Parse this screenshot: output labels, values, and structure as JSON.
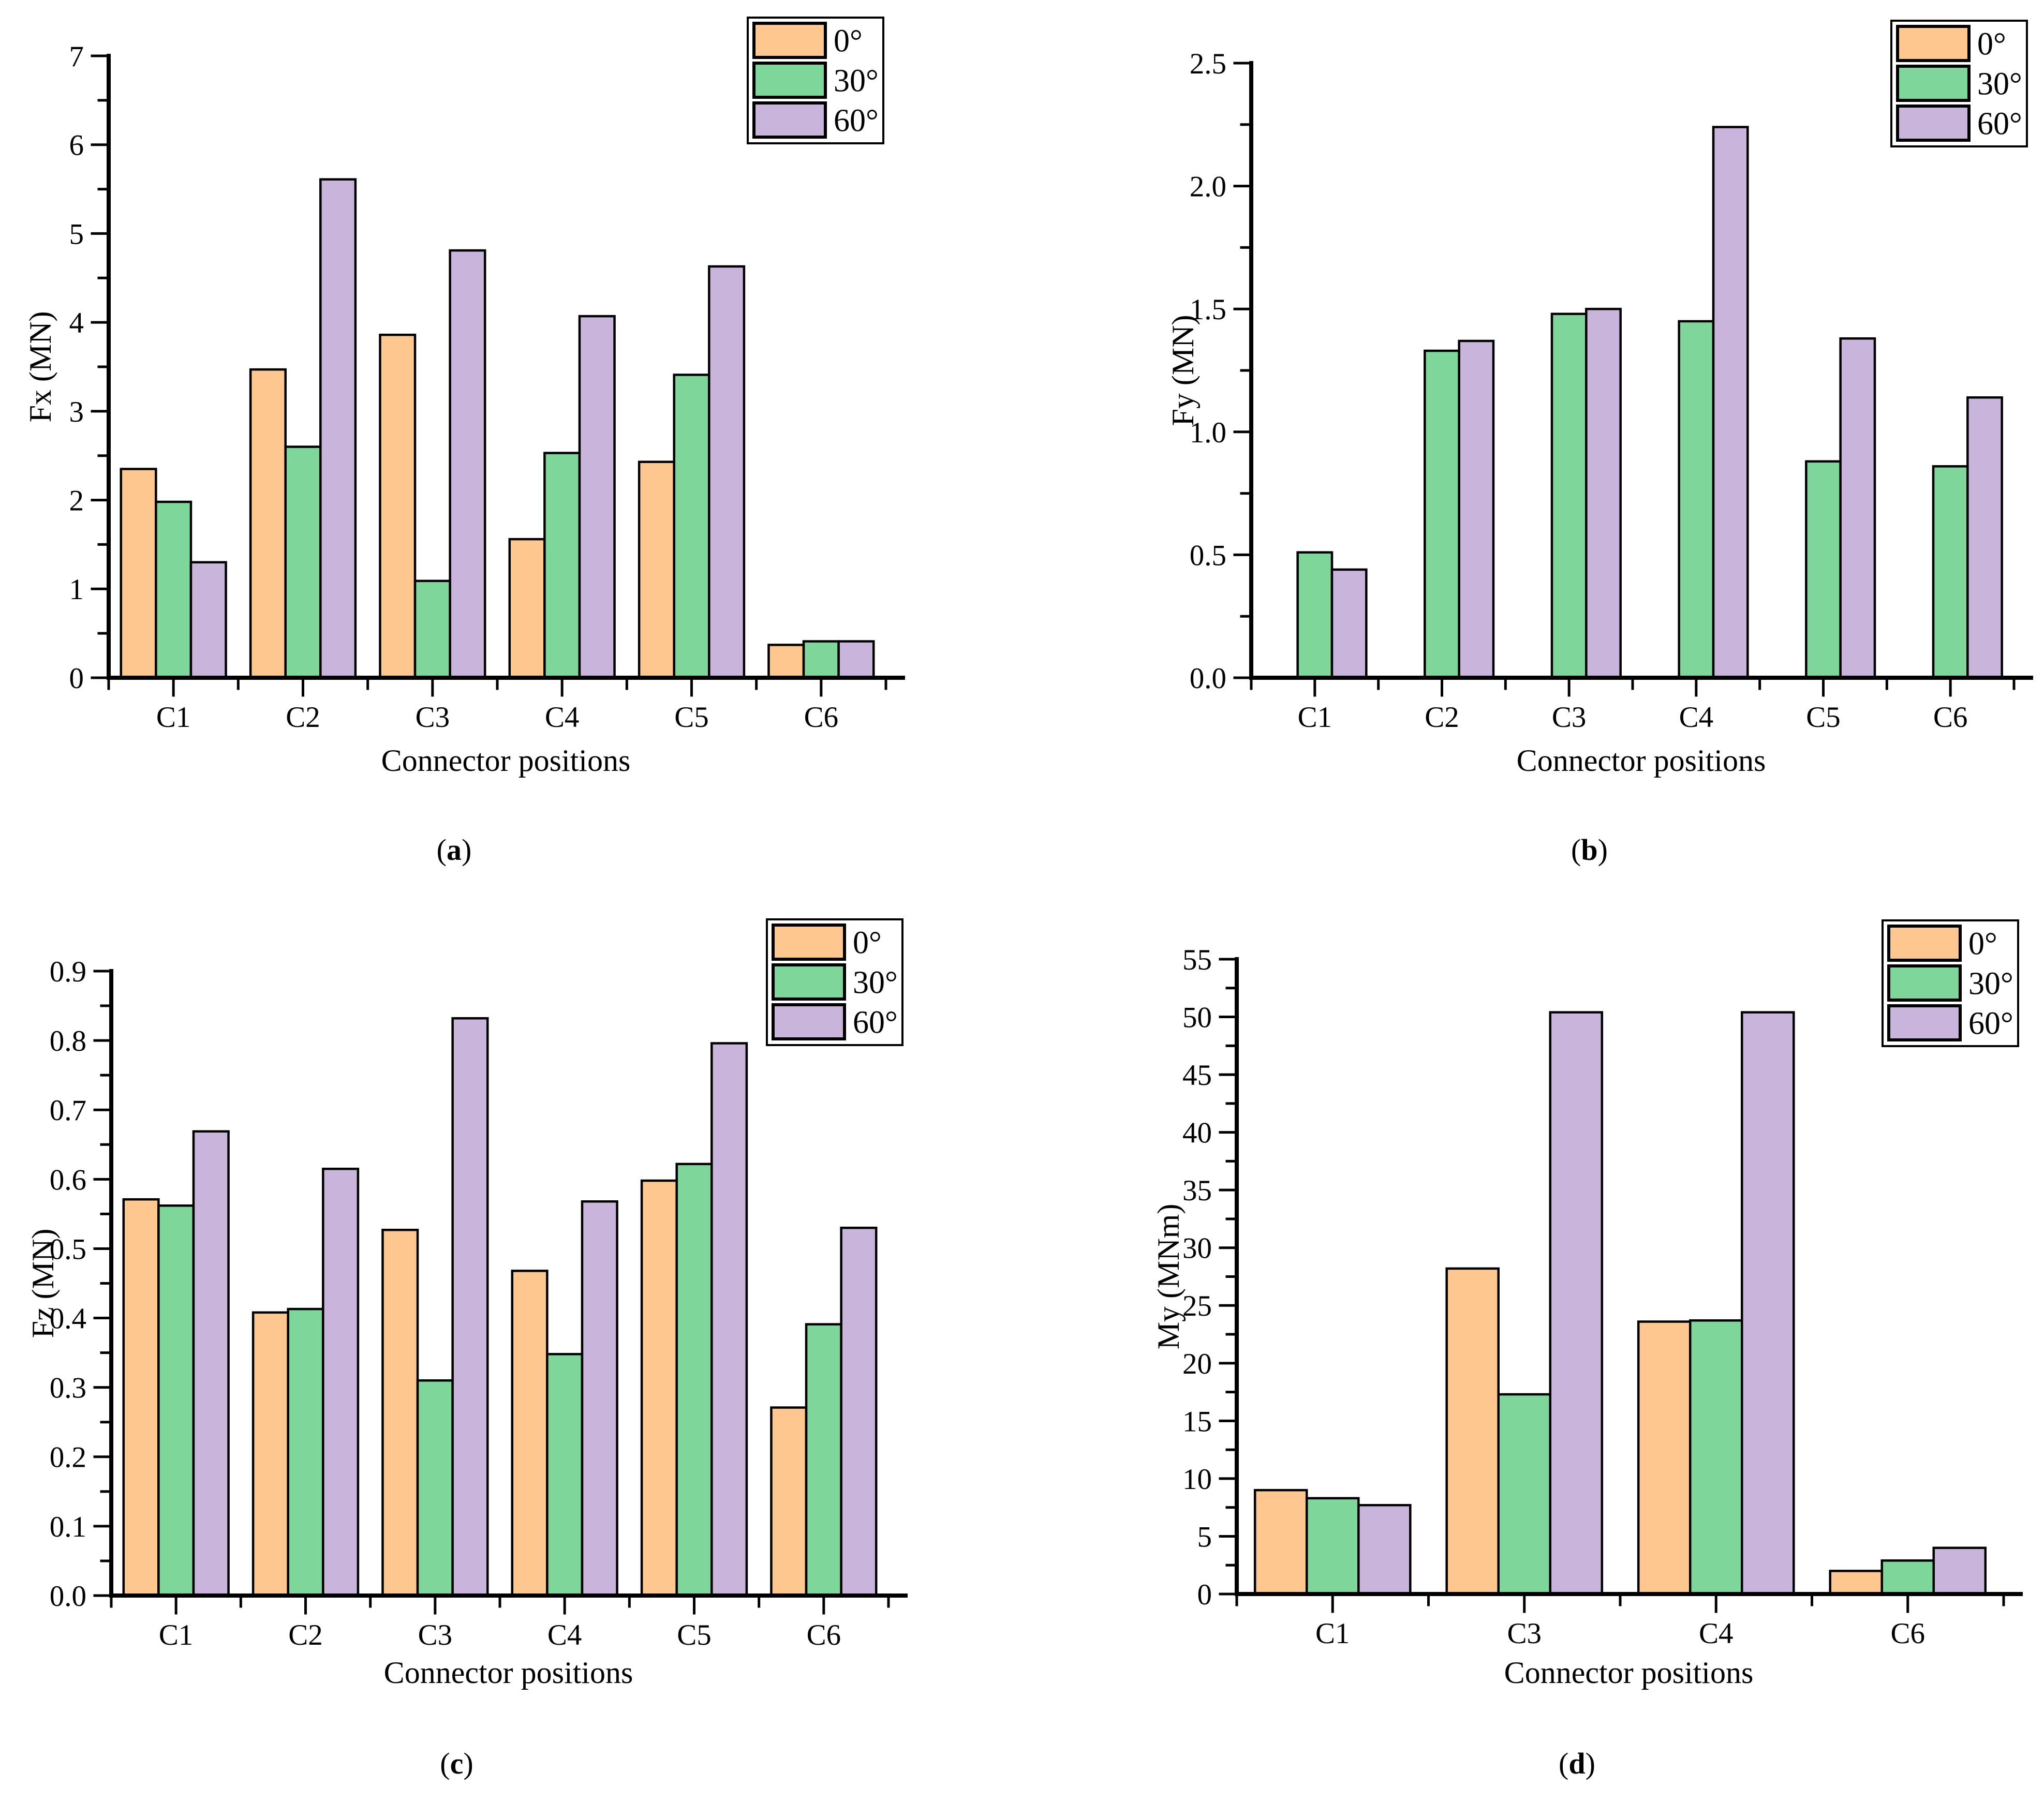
{
  "figure": {
    "background": "#ffffff",
    "text_color": "#000000",
    "series_labels": [
      "0°",
      "30°",
      "60°"
    ],
    "series_colors": {
      "0°": "#FDC78F",
      "30°": "#7FD69B",
      "60°": "#C9B5DC"
    },
    "bar_outline_color": "#000000"
  },
  "chart_data": [
    {
      "id": "a",
      "type": "bar",
      "caption": "a",
      "xlabel": "Connector positions",
      "ylabel": "Fx (MN)",
      "categories": [
        "C1",
        "C2",
        "C3",
        "C4",
        "C5",
        "C6"
      ],
      "series": [
        {
          "name": "0°",
          "values": [
            2.35,
            3.47,
            3.86,
            1.56,
            2.43,
            0.37
          ]
        },
        {
          "name": "30°",
          "values": [
            1.98,
            2.6,
            1.09,
            2.53,
            3.41,
            0.41
          ]
        },
        {
          "name": "60°",
          "values": [
            1.3,
            5.61,
            4.81,
            4.07,
            4.63,
            0.41
          ]
        }
      ],
      "ylim": [
        0,
        7
      ],
      "yticks": [
        "0",
        "1",
        "2",
        "3",
        "4",
        "5",
        "6",
        "7"
      ],
      "y_minor_divisions": 2,
      "grid": false,
      "legend_position": "top-right"
    },
    {
      "id": "b",
      "type": "bar",
      "caption": "b",
      "xlabel": "Connector positions",
      "ylabel": "Fy (MN)",
      "categories": [
        "C1",
        "C2",
        "C3",
        "C4",
        "C5",
        "C6"
      ],
      "series": [
        {
          "name": "0°",
          "values": [
            0,
            0,
            0,
            0,
            0,
            0
          ]
        },
        {
          "name": "30°",
          "values": [
            0.51,
            1.33,
            1.48,
            1.45,
            0.88,
            0.86
          ]
        },
        {
          "name": "60°",
          "values": [
            0.44,
            1.37,
            1.5,
            2.24,
            1.38,
            1.14
          ]
        }
      ],
      "ylim": [
        0,
        2.5
      ],
      "yticks": [
        "0.0",
        "0.5",
        "1.0",
        "1.5",
        "2.0",
        "2.5"
      ],
      "y_minor_divisions": 2,
      "grid": false,
      "legend_position": "top-right"
    },
    {
      "id": "c",
      "type": "bar",
      "caption": "c",
      "xlabel": "Connector positions",
      "ylabel": "Fz (MN)",
      "categories": [
        "C1",
        "C2",
        "C3",
        "C4",
        "C5",
        "C6"
      ],
      "series": [
        {
          "name": "0°",
          "values": [
            0.571,
            0.408,
            0.527,
            0.468,
            0.598,
            0.271
          ]
        },
        {
          "name": "30°",
          "values": [
            0.562,
            0.413,
            0.31,
            0.348,
            0.622,
            0.391
          ]
        },
        {
          "name": "60°",
          "values": [
            0.669,
            0.615,
            0.832,
            0.568,
            0.796,
            0.53
          ]
        }
      ],
      "ylim": [
        0,
        0.9
      ],
      "yticks": [
        "0.0",
        "0.1",
        "0.2",
        "0.3",
        "0.4",
        "0.5",
        "0.6",
        "0.7",
        "0.8",
        "0.9"
      ],
      "y_minor_divisions": 2,
      "grid": false,
      "legend_position": "top-right"
    },
    {
      "id": "d",
      "type": "bar",
      "caption": "d",
      "xlabel": "Connector positions",
      "ylabel": "My (MNm)",
      "categories": [
        "C1",
        "C3",
        "C4",
        "C6"
      ],
      "series": [
        {
          "name": "0°",
          "values": [
            9.0,
            28.2,
            23.6,
            2.0
          ]
        },
        {
          "name": "30°",
          "values": [
            8.3,
            17.3,
            23.7,
            2.9
          ]
        },
        {
          "name": "60°",
          "values": [
            7.7,
            50.4,
            50.4,
            4.0
          ]
        }
      ],
      "ylim": [
        0,
        55
      ],
      "yticks": [
        "0",
        "5",
        "10",
        "15",
        "20",
        "25",
        "30",
        "35",
        "40",
        "45",
        "50",
        "55"
      ],
      "y_minor_divisions": 2,
      "grid": false,
      "legend_position": "top-right"
    }
  ]
}
